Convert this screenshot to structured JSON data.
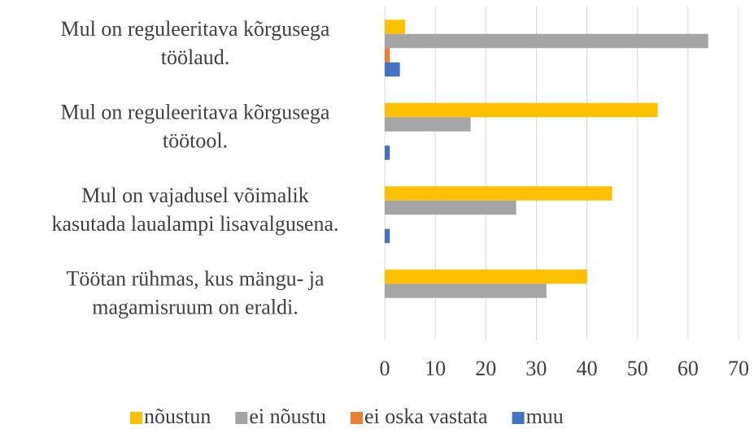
{
  "chart_data": {
    "type": "bar",
    "orientation": "horizontal",
    "categories": [
      "Mul on reguleeritava kõrgusega\ntöölaud.",
      "Mul on reguleeritava kõrgusega\ntöötool.",
      "Mul on vajadusel võimalik\nkasutada laualampi lisavalgusena.",
      "Töötan rühmas, kus mängu- ja\nmagamisruum on eraldi."
    ],
    "series": [
      {
        "name": "nõustun",
        "color": "#ffc000",
        "values": [
          4,
          54,
          45,
          40
        ]
      },
      {
        "name": "ei nõustu",
        "color": "#a5a5a5",
        "values": [
          64,
          17,
          26,
          32
        ]
      },
      {
        "name": "ei oska vastata",
        "color": "#ed7d31",
        "values": [
          1,
          0,
          0,
          0
        ]
      },
      {
        "name": "muu",
        "color": "#4472c4",
        "values": [
          3,
          1,
          1,
          0
        ]
      }
    ],
    "xlim": [
      0,
      70
    ],
    "xticks": [
      0,
      10,
      20,
      30,
      40,
      50,
      60,
      70
    ],
    "grid": true,
    "legend": "bottom"
  }
}
